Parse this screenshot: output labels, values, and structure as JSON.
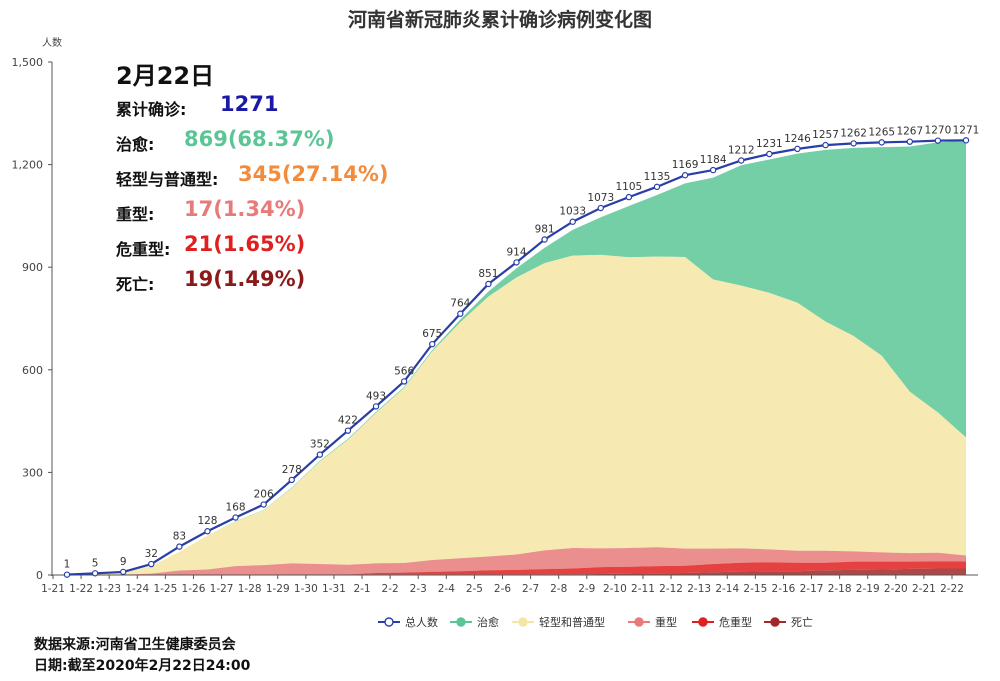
{
  "chart_data": {
    "type": "area",
    "title": "河南省新冠肺炎累计确诊病例变化图",
    "ylabel": "人数",
    "ylim": [
      0,
      1500
    ],
    "yticks": [
      "0",
      "300",
      "600",
      "900",
      "1,200",
      "1,500"
    ],
    "ytick_values": [
      0,
      300,
      600,
      900,
      1200,
      1500
    ],
    "categories": [
      "1-21",
      "1-22",
      "1-23",
      "1-24",
      "1-25",
      "1-26",
      "1-27",
      "1-28",
      "1-29",
      "1-30",
      "1-31",
      "2-1",
      "2-2",
      "2-3",
      "2-4",
      "2-5",
      "2-6",
      "2-7",
      "2-8",
      "2-9",
      "2-10",
      "2-11",
      "2-12",
      "2-13",
      "2-14",
      "2-15",
      "2-16",
      "2-17",
      "2-18",
      "2-19",
      "2-20",
      "2-21",
      "2-22"
    ],
    "series": [
      {
        "name": "总人数",
        "color": "#2a3ea8",
        "values": [
          1,
          5,
          9,
          32,
          83,
          128,
          168,
          206,
          278,
          352,
          422,
          493,
          566,
          675,
          764,
          851,
          914,
          981,
          1033,
          1073,
          1105,
          1135,
          1169,
          1184,
          1212,
          1231,
          1246,
          1257,
          1262,
          1265,
          1267,
          1270,
          1271
        ]
      },
      {
        "name": "治愈",
        "color": "#5cc596",
        "values": [
          0,
          0,
          0,
          0,
          0,
          0,
          1,
          1,
          2,
          2,
          3,
          3,
          3,
          4,
          8,
          15,
          27,
          45,
          75,
          110,
          150,
          180,
          215,
          298,
          352,
          390,
          436,
          502,
          550,
          610,
          717,
          790,
          869
        ]
      },
      {
        "name": "轻型和普通型",
        "color": "#f4e6a4",
        "values": [
          1,
          4,
          7,
          22,
          55,
          100,
          130,
          160,
          220,
          300,
          365,
          440,
          512,
          610,
          690,
          760,
          810,
          840,
          855,
          858,
          850,
          850,
          853,
          787,
          768,
          750,
          725,
          670,
          630,
          575,
          472,
          410,
          345
        ]
      },
      {
        "name": "重型",
        "color": "#e87a7a",
        "values": [
          0,
          0,
          0,
          3,
          12,
          15,
          25,
          28,
          32,
          30,
          28,
          28,
          28,
          35,
          38,
          40,
          45,
          55,
          60,
          55,
          55,
          55,
          50,
          45,
          42,
          38,
          35,
          35,
          30,
          27,
          25,
          25,
          17
        ]
      },
      {
        "name": "危重型",
        "color": "#e02020",
        "values": [
          0,
          0,
          0,
          0,
          0,
          0,
          0,
          0,
          0,
          0,
          0,
          4,
          5,
          7,
          9,
          12,
          13,
          15,
          17,
          20,
          20,
          21,
          21,
          24,
          26,
          26,
          25,
          22,
          24,
          23,
          21,
          21,
          21
        ]
      },
      {
        "name": "死亡",
        "color": "#a02828",
        "values": [
          0,
          0,
          1,
          1,
          1,
          1,
          1,
          1,
          2,
          2,
          2,
          2,
          2,
          2,
          2,
          2,
          2,
          2,
          2,
          3,
          4,
          5,
          6,
          8,
          10,
          11,
          11,
          14,
          15,
          16,
          18,
          19,
          19
        ]
      }
    ],
    "legend_position": "bottom-center",
    "grid": false
  },
  "info": {
    "date": "2月22日",
    "rows": [
      {
        "label": "累计确诊:",
        "value": "1271",
        "color": "#1a1aa6"
      },
      {
        "label": "治愈:",
        "value": "869(68.37%)",
        "color": "#5cc596"
      },
      {
        "label": "轻型与普通型:",
        "value": "345(27.14%)",
        "color": "#f28c3c"
      },
      {
        "label": "重型:",
        "value": "17(1.34%)",
        "color": "#e87a7a"
      },
      {
        "label": "危重型:",
        "value": "21(1.65%)",
        "color": "#e02020"
      },
      {
        "label": "死亡:",
        "value": "19(1.49%)",
        "color": "#8b1a1a"
      }
    ]
  },
  "footer": {
    "source": "数据来源:河南省卫生健康委员会",
    "date": "日期:截至2020年2月22日24:00"
  }
}
